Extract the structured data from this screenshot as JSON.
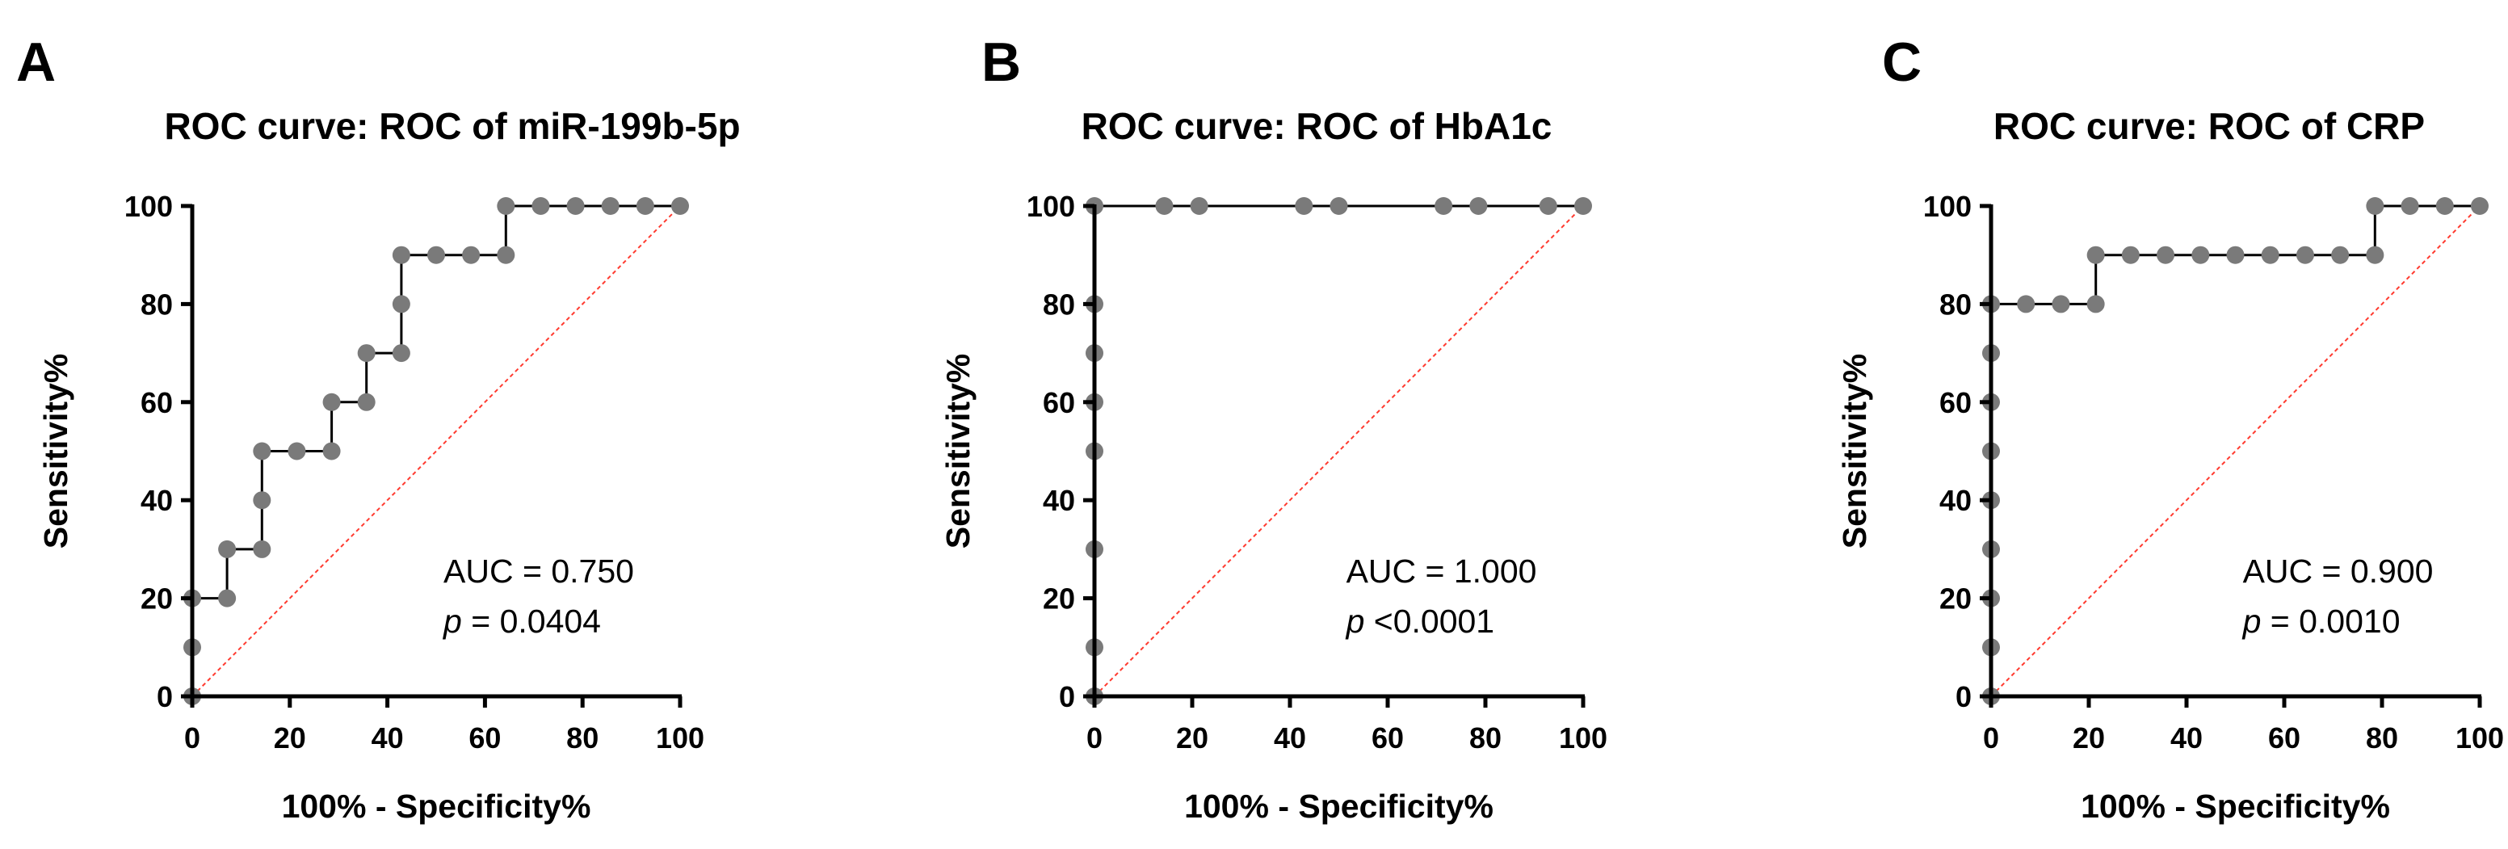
{
  "chart_data": [
    {
      "type": "line",
      "panel_letter": "A",
      "title": "ROC curve: ROC of miR-199b-5p",
      "xlabel": "100% - Specificity%",
      "ylabel": "Sensitivity%",
      "xlim": [
        0,
        100
      ],
      "ylim": [
        0,
        100
      ],
      "xticks": [
        0,
        20,
        40,
        60,
        80,
        100
      ],
      "yticks": [
        0,
        20,
        40,
        60,
        80,
        100
      ],
      "ref_line_color": "#ff3b30",
      "point_color": "#7a7a7a",
      "annotation": {
        "auc": "AUC = 0.750",
        "p_symbol": "p",
        "p_value": " = 0.0404"
      },
      "points": [
        [
          0,
          0
        ],
        [
          0,
          10
        ],
        [
          0,
          20
        ],
        [
          7.14,
          20
        ],
        [
          7.14,
          30
        ],
        [
          14.29,
          30
        ],
        [
          14.29,
          40
        ],
        [
          14.29,
          50
        ],
        [
          21.43,
          50
        ],
        [
          28.57,
          50
        ],
        [
          28.57,
          60
        ],
        [
          35.71,
          60
        ],
        [
          35.71,
          70
        ],
        [
          42.86,
          70
        ],
        [
          42.86,
          80
        ],
        [
          42.86,
          90
        ],
        [
          50,
          90
        ],
        [
          57.14,
          90
        ],
        [
          64.29,
          90
        ],
        [
          64.29,
          100
        ],
        [
          71.43,
          100
        ],
        [
          78.57,
          100
        ],
        [
          85.71,
          100
        ],
        [
          92.86,
          100
        ],
        [
          100,
          100
        ]
      ]
    },
    {
      "type": "line",
      "panel_letter": "B",
      "title": "ROC curve: ROC of HbA1c",
      "xlabel": "100% - Specificity%",
      "ylabel": "Sensitivity%",
      "xlim": [
        0,
        100
      ],
      "ylim": [
        0,
        100
      ],
      "xticks": [
        0,
        20,
        40,
        60,
        80,
        100
      ],
      "yticks": [
        0,
        20,
        40,
        60,
        80,
        100
      ],
      "ref_line_color": "#ff3b30",
      "point_color": "#7a7a7a",
      "annotation": {
        "auc": "AUC = 1.000",
        "p_symbol": "p",
        "p_value": " <0.0001"
      },
      "points": [
        [
          0,
          0
        ],
        [
          0,
          10
        ],
        [
          0,
          30
        ],
        [
          0,
          50
        ],
        [
          0,
          60
        ],
        [
          0,
          70
        ],
        [
          0,
          80
        ],
        [
          0,
          100
        ],
        [
          14.29,
          100
        ],
        [
          21.43,
          100
        ],
        [
          42.86,
          100
        ],
        [
          50,
          100
        ],
        [
          71.43,
          100
        ],
        [
          78.57,
          100
        ],
        [
          92.86,
          100
        ],
        [
          100,
          100
        ]
      ]
    },
    {
      "type": "line",
      "panel_letter": "C",
      "title": "ROC curve: ROC of CRP",
      "xlabel": "100% - Specificity%",
      "ylabel": "Sensitivity%",
      "xlim": [
        0,
        100
      ],
      "ylim": [
        0,
        100
      ],
      "xticks": [
        0,
        20,
        40,
        60,
        80,
        100
      ],
      "yticks": [
        0,
        20,
        40,
        60,
        80,
        100
      ],
      "ref_line_color": "#ff3b30",
      "point_color": "#7a7a7a",
      "annotation": {
        "auc": "AUC = 0.900",
        "p_symbol": "p",
        "p_value": " = 0.0010"
      },
      "points": [
        [
          0,
          0
        ],
        [
          0,
          10
        ],
        [
          0,
          20
        ],
        [
          0,
          30
        ],
        [
          0,
          40
        ],
        [
          0,
          50
        ],
        [
          0,
          60
        ],
        [
          0,
          70
        ],
        [
          0,
          80
        ],
        [
          7.14,
          80
        ],
        [
          14.29,
          80
        ],
        [
          21.43,
          80
        ],
        [
          21.43,
          90
        ],
        [
          28.57,
          90
        ],
        [
          35.71,
          90
        ],
        [
          42.86,
          90
        ],
        [
          50,
          90
        ],
        [
          57.14,
          90
        ],
        [
          64.29,
          90
        ],
        [
          71.43,
          90
        ],
        [
          78.57,
          90
        ],
        [
          78.57,
          100
        ],
        [
          85.71,
          100
        ],
        [
          92.86,
          100
        ],
        [
          100,
          100
        ]
      ]
    }
  ]
}
